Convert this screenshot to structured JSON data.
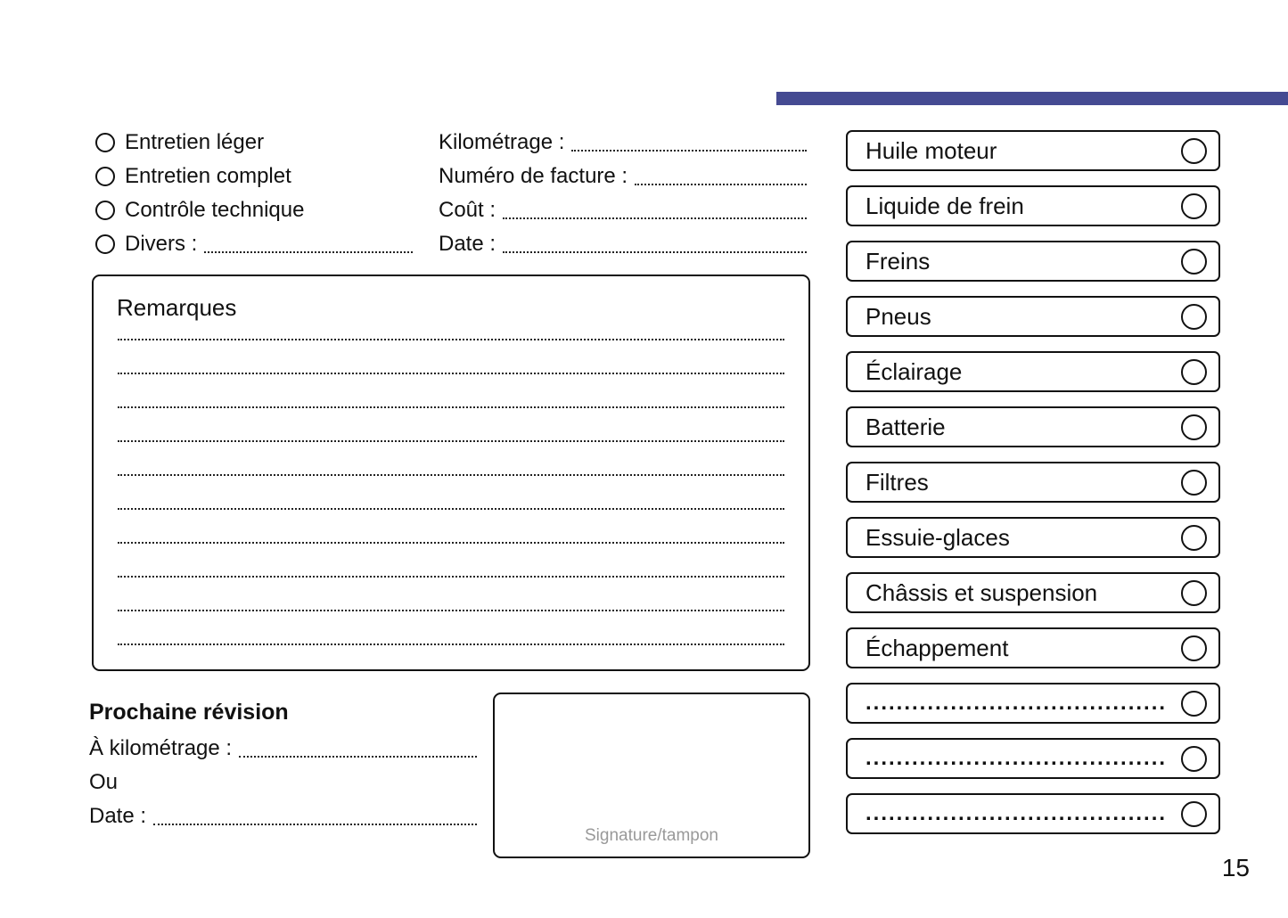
{
  "accent_color": "#454a92",
  "page_number": "15",
  "service_types": {
    "items": [
      {
        "label": "Entretien léger"
      },
      {
        "label": "Entretien complet"
      },
      {
        "label": "Contrôle technique"
      },
      {
        "label": "Divers :"
      }
    ]
  },
  "invoice_fields": {
    "items": [
      {
        "label": "Kilométrage :"
      },
      {
        "label": "Numéro de facture :"
      },
      {
        "label": "Coût :"
      },
      {
        "label": "Date :"
      }
    ]
  },
  "remarks": {
    "title": "Remarques",
    "line_count": 10
  },
  "next_service": {
    "title": "Prochaine révision",
    "fields": [
      {
        "label": "À kilométrage :"
      },
      {
        "label": "Ou"
      },
      {
        "label": "Date :"
      }
    ]
  },
  "signature": {
    "label": "Signature/tampon"
  },
  "checklist": {
    "items": [
      {
        "label": "Huile moteur"
      },
      {
        "label": "Liquide de frein"
      },
      {
        "label": "Freins"
      },
      {
        "label": "Pneus"
      },
      {
        "label": "Éclairage"
      },
      {
        "label": "Batterie"
      },
      {
        "label": "Filtres"
      },
      {
        "label": "Essuie-glaces"
      },
      {
        "label": "Châssis et suspension"
      },
      {
        "label": "Échappement"
      },
      {
        "label": "......................................."
      },
      {
        "label": "......................................."
      },
      {
        "label": "......................................."
      }
    ]
  }
}
